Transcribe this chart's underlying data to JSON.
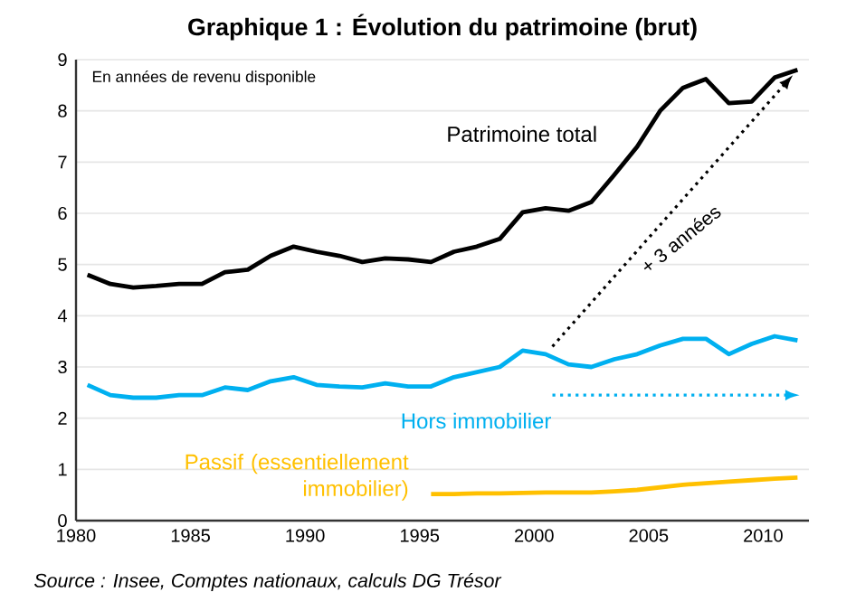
{
  "chart_data": {
    "type": "line",
    "title": "Graphique 1 : Évolution du patrimoine (brut)",
    "subtitle": "En années de revenu disponible",
    "x": [
      1980.5,
      1981.5,
      1982.5,
      1983.5,
      1984.5,
      1985.5,
      1986.5,
      1987.5,
      1988.5,
      1989.5,
      1990.5,
      1991.5,
      1992.5,
      1993.5,
      1994.5,
      1995.5,
      1996.5,
      1997.5,
      1998.5,
      1999.5,
      2000.5,
      2001.5,
      2002.5,
      2003.5,
      2004.5,
      2005.5,
      2006.5,
      2007.5,
      2008.5,
      2009.5,
      2010.5,
      2011.5
    ],
    "series": [
      {
        "name": "Patrimoine total",
        "color": "#000000",
        "values": [
          4.8,
          4.62,
          4.55,
          4.58,
          4.62,
          4.62,
          4.85,
          4.9,
          5.17,
          5.35,
          5.25,
          5.17,
          5.05,
          5.12,
          5.1,
          5.05,
          5.25,
          5.35,
          5.5,
          6.02,
          6.1,
          6.05,
          6.22,
          6.75,
          7.3,
          8.0,
          8.45,
          8.62,
          8.15,
          8.18,
          8.65,
          8.8
        ]
      },
      {
        "name": "Hors immobilier",
        "color": "#00b0f0",
        "values": [
          2.65,
          2.45,
          2.4,
          2.4,
          2.45,
          2.45,
          2.6,
          2.55,
          2.72,
          2.8,
          2.65,
          2.62,
          2.6,
          2.68,
          2.62,
          2.62,
          2.8,
          2.9,
          3.0,
          3.32,
          3.25,
          3.05,
          3.0,
          3.15,
          3.25,
          3.42,
          3.55,
          3.55,
          3.25,
          3.45,
          3.6,
          3.52
        ]
      },
      {
        "name": "Passif (essentiellement immobilier)",
        "color": "#ffc000",
        "values": [
          null,
          null,
          null,
          null,
          null,
          null,
          null,
          null,
          null,
          null,
          null,
          null,
          null,
          null,
          null,
          0.52,
          0.52,
          0.53,
          0.53,
          0.54,
          0.55,
          0.55,
          0.55,
          0.57,
          0.6,
          0.65,
          0.7,
          0.73,
          0.76,
          0.79,
          0.82,
          0.84
        ]
      }
    ],
    "annotations": [
      "+ 3 années",
      "Source : Insee, Comptes nationaux, calculs DG Trésor"
    ],
    "xlim": [
      1980,
      2012
    ],
    "ylim": [
      0,
      9
    ],
    "xticks": [
      1980,
      1985,
      1990,
      1995,
      2000,
      2005,
      2010
    ],
    "yticks": [
      0,
      1,
      2,
      3,
      4,
      5,
      6,
      7,
      8,
      9
    ],
    "grid": "y",
    "legend": false,
    "marker": "none",
    "line_style": "solid"
  }
}
